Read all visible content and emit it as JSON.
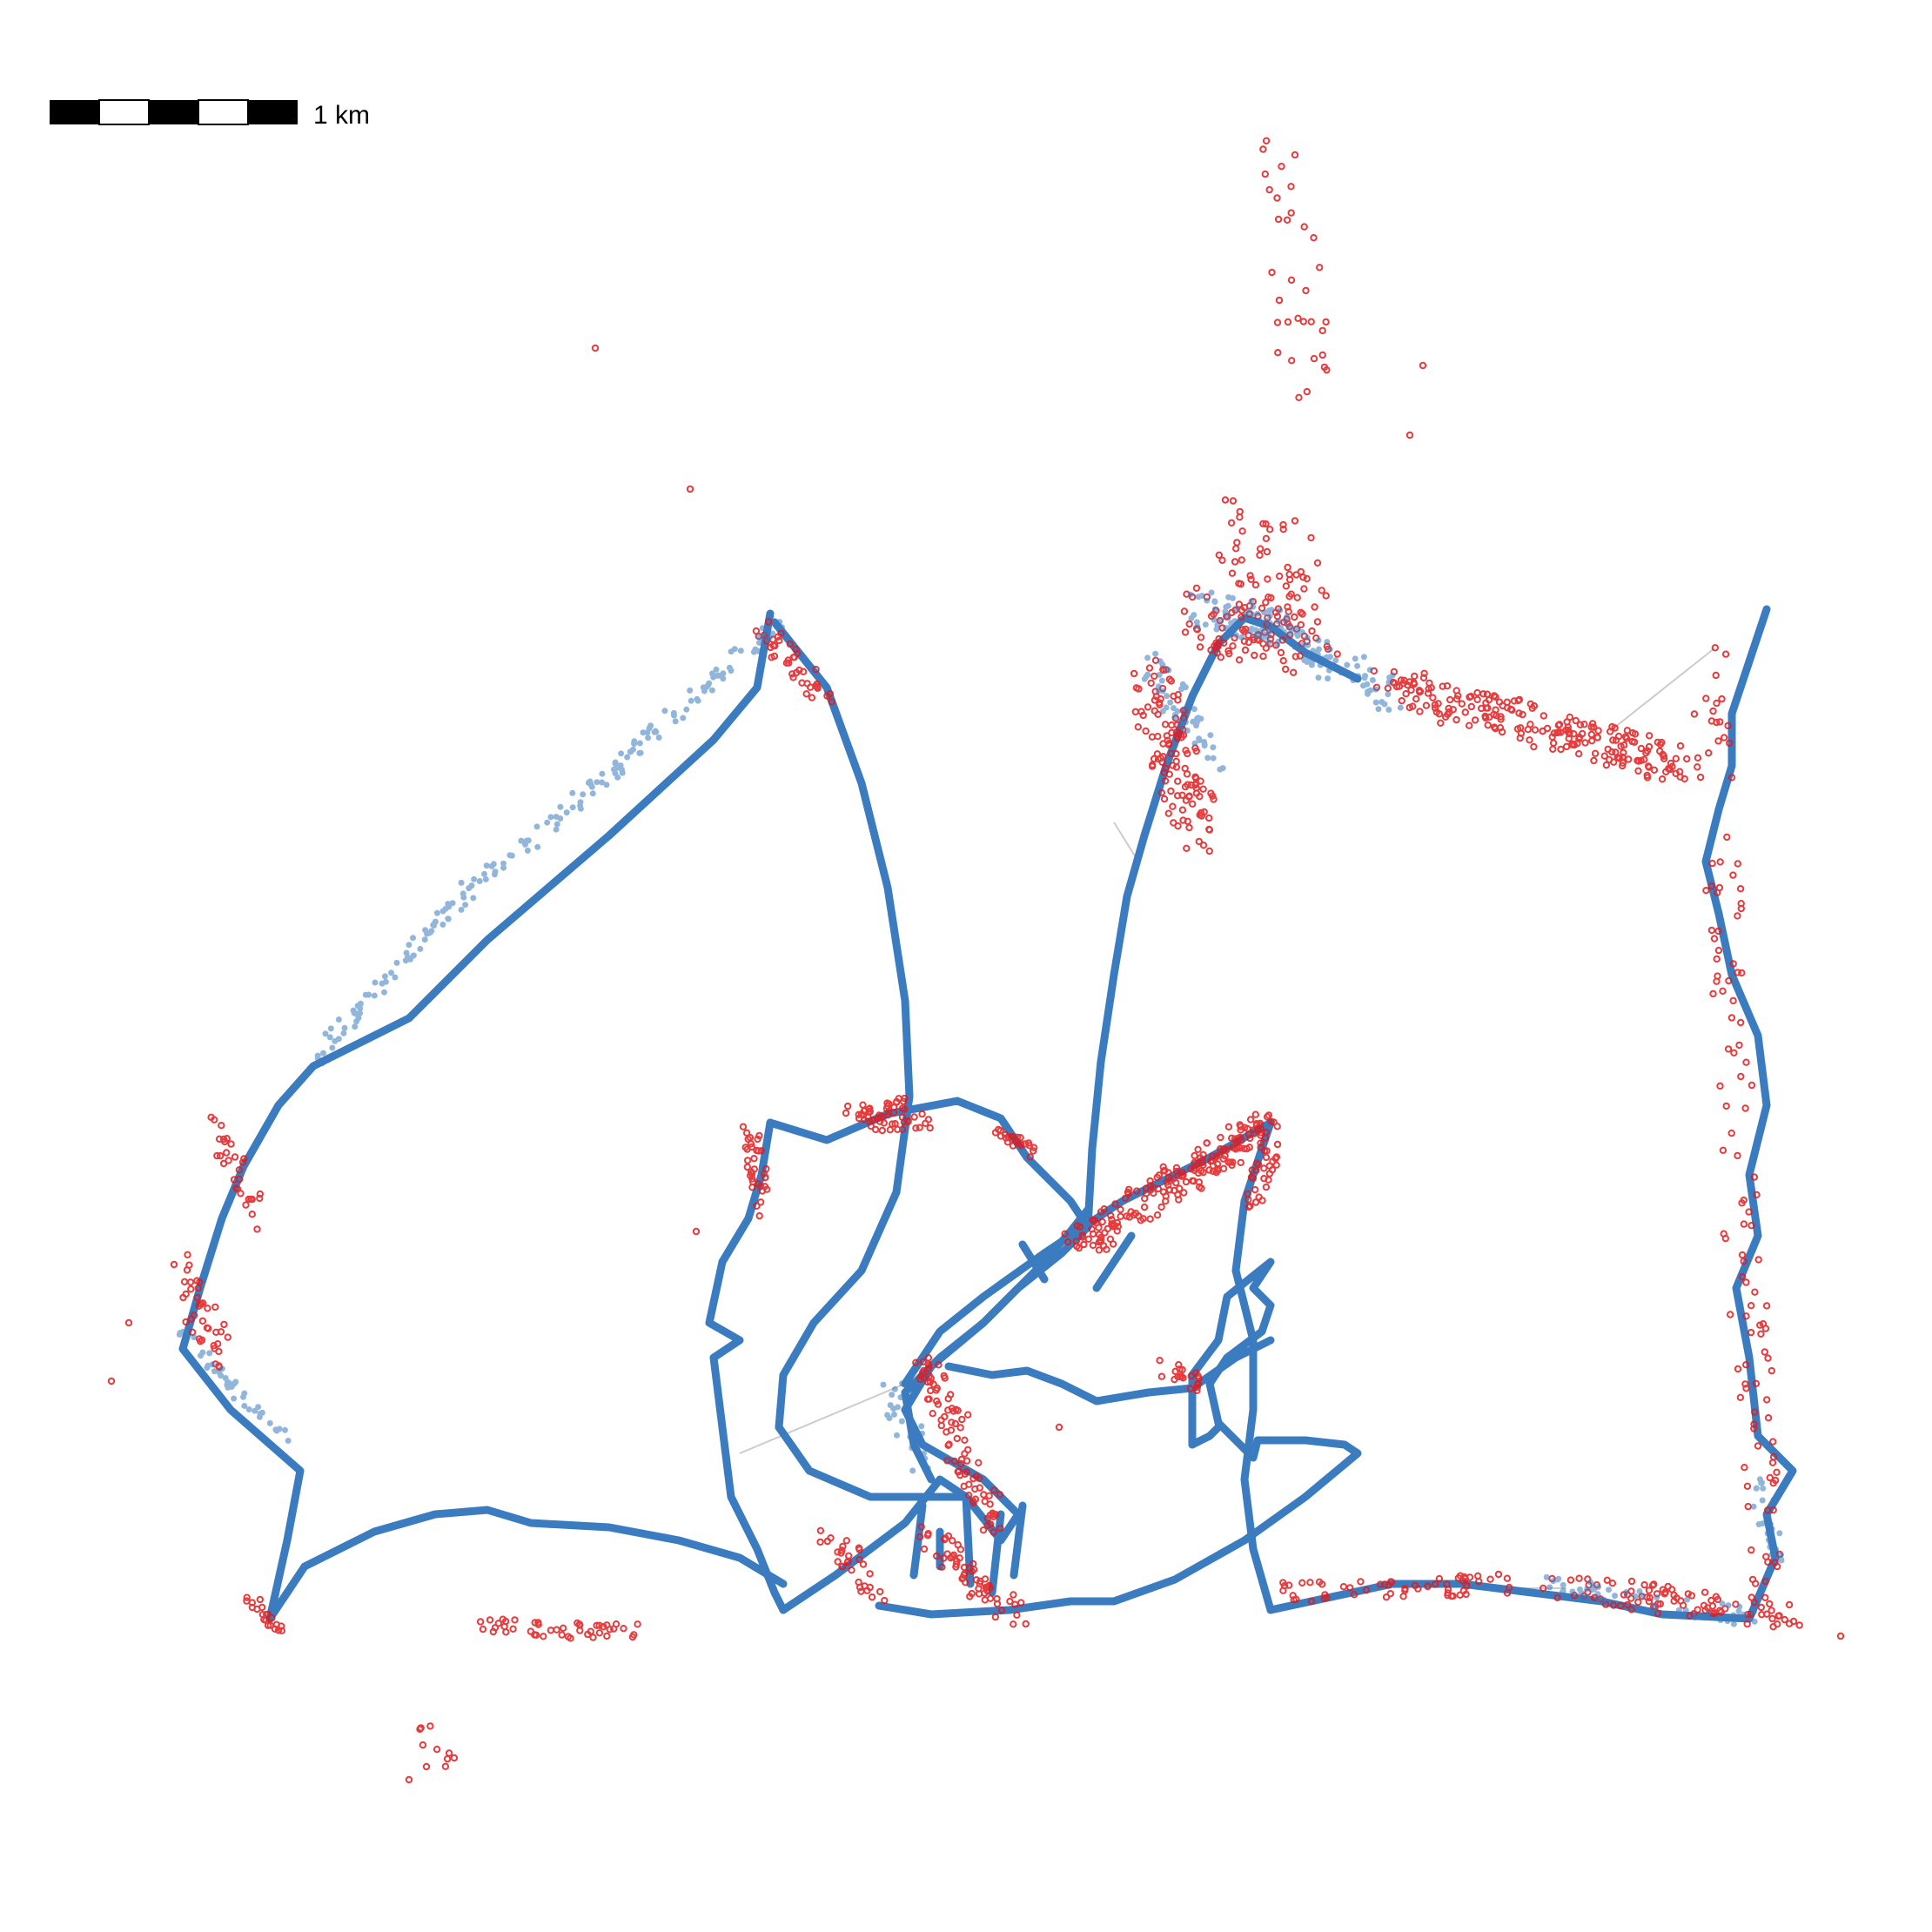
{
  "scale_bar": {
    "label": "1 km"
  },
  "colors": {
    "track": "#3a7cbf",
    "outlier": "#e41a1c",
    "gap_line": "#cccccc",
    "scale_dark": "#000000",
    "scale_light": "#ffffff"
  },
  "legend": {
    "visible": false
  }
}
